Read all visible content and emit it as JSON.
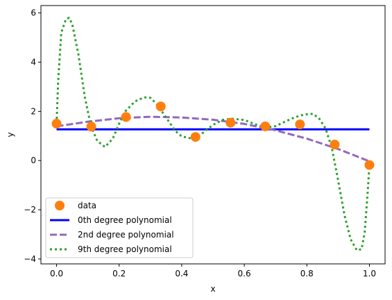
{
  "chart_data": {
    "type": "line",
    "xlabel": "x",
    "ylabel": "y",
    "xlim": [
      -0.05,
      1.05
    ],
    "ylim": [
      -4.2,
      6.3
    ],
    "xticks": [
      0.0,
      0.2,
      0.4,
      0.6,
      0.8,
      1.0
    ],
    "xtick_labels": [
      "0.0",
      "0.2",
      "0.4",
      "0.6",
      "0.8",
      "1.0"
    ],
    "yticks": [
      -4,
      -2,
      0,
      2,
      4,
      6
    ],
    "ytick_labels": [
      "−4",
      "−2",
      "0",
      "2",
      "4",
      "6"
    ],
    "grid": false,
    "legend_position": "lower-left",
    "data": {
      "name": "data",
      "color": "#ff7f0e",
      "x": [
        0.0,
        0.111,
        0.222,
        0.333,
        0.444,
        0.556,
        0.667,
        0.778,
        0.889,
        1.0
      ],
      "y": [
        1.5,
        1.38,
        1.77,
        2.2,
        0.96,
        1.54,
        1.39,
        1.47,
        0.65,
        -0.18
      ]
    },
    "series": [
      {
        "name": "0th degree polynomial",
        "color": "#0000ff",
        "style": "solid",
        "x": [
          0.0,
          1.0
        ],
        "y": [
          1.27,
          1.27
        ]
      },
      {
        "name": "2nd degree polynomial",
        "color": "#9467bd",
        "style": "dashed",
        "x": [
          0.0,
          0.1,
          0.2,
          0.3,
          0.4,
          0.5,
          0.6,
          0.7,
          0.8,
          0.9,
          1.0
        ],
        "y": [
          1.39,
          1.58,
          1.72,
          1.78,
          1.75,
          1.66,
          1.49,
          1.23,
          0.89,
          0.47,
          -0.03
        ]
      },
      {
        "name": "9th degree polynomial",
        "color": "#2ca02c",
        "style": "dotted",
        "x": [
          0.0,
          0.005,
          0.015,
          0.03,
          0.04,
          0.05,
          0.07,
          0.09,
          0.11,
          0.13,
          0.155,
          0.18,
          0.2,
          0.22,
          0.25,
          0.28,
          0.3,
          0.32,
          0.35,
          0.38,
          0.4,
          0.43,
          0.46,
          0.5,
          0.53,
          0.56,
          0.6,
          0.64,
          0.67,
          0.7,
          0.73,
          0.76,
          0.79,
          0.82,
          0.84,
          0.86,
          0.88,
          0.9,
          0.92,
          0.94,
          0.96,
          0.975,
          0.985,
          0.995,
          1.0
        ],
        "y": [
          1.5,
          3.2,
          5.2,
          5.75,
          5.8,
          5.55,
          4.3,
          2.6,
          1.4,
          0.8,
          0.55,
          0.9,
          1.5,
          2.0,
          2.4,
          2.57,
          2.55,
          2.3,
          1.75,
          1.2,
          0.98,
          0.9,
          1.05,
          1.45,
          1.65,
          1.7,
          1.65,
          1.45,
          1.35,
          1.4,
          1.58,
          1.75,
          1.87,
          1.9,
          1.7,
          1.3,
          0.5,
          -0.8,
          -2.2,
          -3.2,
          -3.65,
          -3.6,
          -2.9,
          -1.2,
          -0.18
        ]
      }
    ],
    "legend": [
      "data",
      "0th degree polynomial",
      "2nd degree polynomial",
      "9th degree polynomial"
    ]
  }
}
